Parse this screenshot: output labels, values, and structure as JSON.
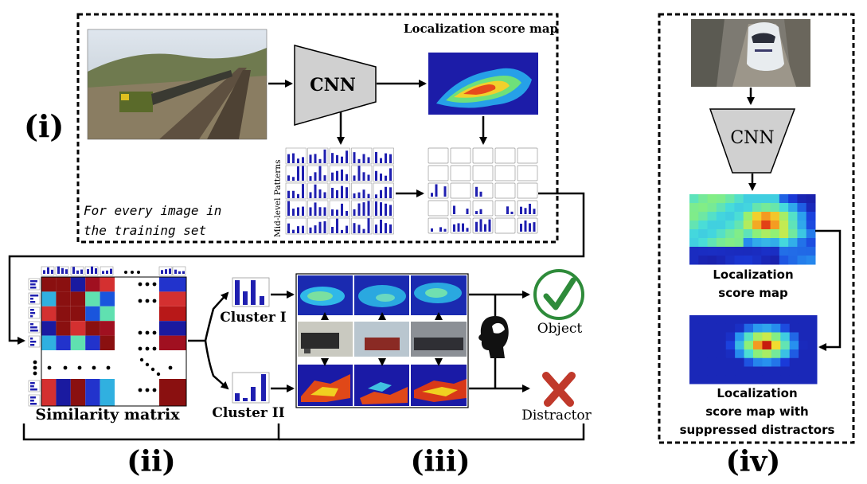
{
  "panels": {
    "i": "(i)",
    "ii": "(ii)",
    "iii": "(iii)",
    "iv": "(iv)"
  },
  "panel_i": {
    "cnn_label": "CNN",
    "score_map_title": "Localization score map",
    "mid_level_label": "Mid-level Patterns",
    "note_line1": "For every image in",
    "note_line2": "the training set"
  },
  "panel_ii": {
    "similarity_label": "Similarity matrix",
    "cluster1_label": "Cluster I",
    "cluster2_label": "Cluster II"
  },
  "panel_iii": {
    "object_label": "Object",
    "distractor_label": "Distractor"
  },
  "panel_iv": {
    "cnn_label": "CNN",
    "score_map_label_line1": "Localization",
    "score_map_label_line2": "score map",
    "suppressed_label_line1": "Localization",
    "suppressed_label_line2": "score map with",
    "suppressed_label_line3": "suppressed distractors"
  },
  "colors": {
    "dashed_border": "#000000",
    "cnn_fill": "#d0d0d0",
    "heat_low": "#1a1aa6",
    "heat_high": "#d41f1f",
    "bar": "#1f1fb0",
    "check": "#2e8b3a",
    "cross": "#c0392b"
  }
}
